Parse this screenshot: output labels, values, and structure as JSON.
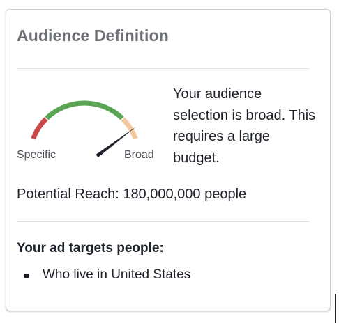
{
  "panel": {
    "title": "Audience Definition"
  },
  "gauge": {
    "label_specific": "Specific",
    "label_broad": "Broad",
    "level": 0.88,
    "colors": {
      "specific": "#c94a49",
      "middle": "#5aa454",
      "broad": "#f3c79f",
      "needle": "#1d2129"
    }
  },
  "breadth": {
    "message": "Your audience selection is broad. This requires a large budget."
  },
  "reach": {
    "text": "Potential Reach: 180,000,000 people"
  },
  "targets": {
    "heading": "Your ad targets people:",
    "items": [
      {
        "label": "Who live in United States"
      }
    ]
  }
}
